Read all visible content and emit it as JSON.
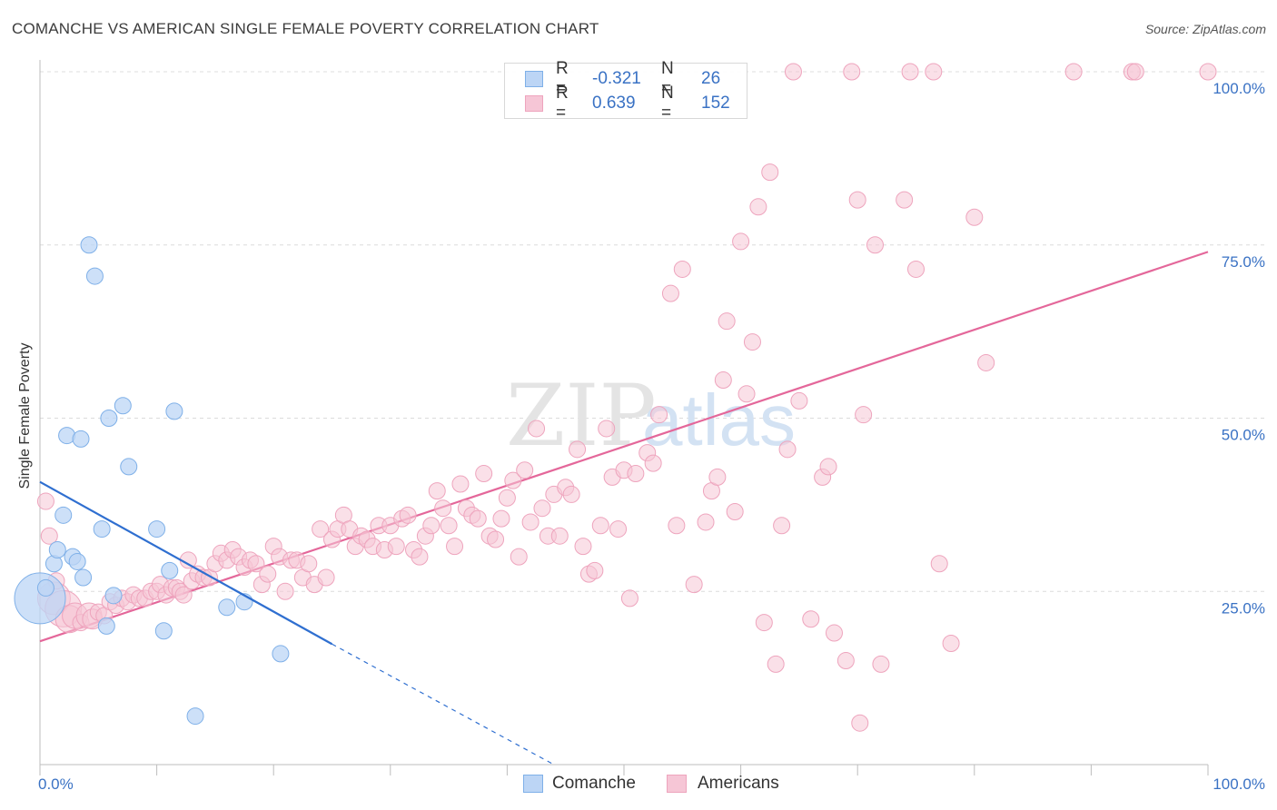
{
  "title": "COMANCHE VS AMERICAN SINGLE FEMALE POVERTY CORRELATION CHART",
  "source": "Source: ZipAtlas.com",
  "watermark": {
    "zip": "ZIP",
    "atlas": "atlas"
  },
  "legend": {
    "r_label": "R =",
    "n_label": "N =",
    "comanche": {
      "r": "-0.321",
      "n": "26"
    },
    "americans": {
      "r": "0.639",
      "n": "152"
    }
  },
  "chart_data": {
    "type": "scatter",
    "title": "COMANCHE VS AMERICAN SINGLE FEMALE POVERTY CORRELATION CHART",
    "xlabel": "",
    "ylabel": "Single Female Poverty",
    "xlim": [
      0,
      100
    ],
    "ylim": [
      0,
      100
    ],
    "x_tick_labels": [
      {
        "value": 0,
        "label": "0.0%"
      },
      {
        "value": 100,
        "label": "100.0%"
      }
    ],
    "y_tick_labels": [
      {
        "value": 25,
        "label": "25.0%"
      },
      {
        "value": 50,
        "label": "50.0%"
      },
      {
        "value": 75,
        "label": "75.0%"
      },
      {
        "value": 100,
        "label": "100.0%"
      }
    ],
    "series": [
      {
        "name": "Comanche",
        "color": "#7fb0e8",
        "fill": "#bcd5f5",
        "line_color": "#2f6fd0",
        "trend": {
          "x0": 0,
          "y0": 40.8,
          "x1": 25,
          "y1": 17.4,
          "dash_to_x": 44,
          "dash_to_y": 0
        },
        "points": [
          [
            0,
            24,
            28
          ],
          [
            0.5,
            25.5,
            9
          ],
          [
            1.2,
            29,
            9
          ],
          [
            1.5,
            31,
            9
          ],
          [
            2,
            36,
            9
          ],
          [
            2.3,
            47.5,
            9
          ],
          [
            2.8,
            30,
            9
          ],
          [
            3.2,
            29.3,
            9
          ],
          [
            3.5,
            47,
            9
          ],
          [
            3.7,
            27,
            9
          ],
          [
            4.2,
            75,
            9
          ],
          [
            4.7,
            70.5,
            9
          ],
          [
            5.3,
            34,
            9
          ],
          [
            5.7,
            20,
            9
          ],
          [
            5.9,
            50,
            9
          ],
          [
            6.3,
            24.4,
            9
          ],
          [
            7.1,
            51.8,
            9
          ],
          [
            7.6,
            43,
            9
          ],
          [
            10,
            34,
            9
          ],
          [
            10.6,
            19.3,
            9
          ],
          [
            11.1,
            28,
            9
          ],
          [
            11.5,
            51,
            9
          ],
          [
            13.3,
            7,
            9
          ],
          [
            16,
            22.7,
            9
          ],
          [
            17.5,
            23.5,
            9
          ],
          [
            20.6,
            16,
            9
          ]
        ]
      },
      {
        "name": "Americans",
        "color": "#eea4bd",
        "fill": "#f6c6d6",
        "line_color": "#e4679a",
        "trend": {
          "x0": 0,
          "y0": 17.8,
          "x1": 100,
          "y1": 74
        }
      }
    ]
  }
}
